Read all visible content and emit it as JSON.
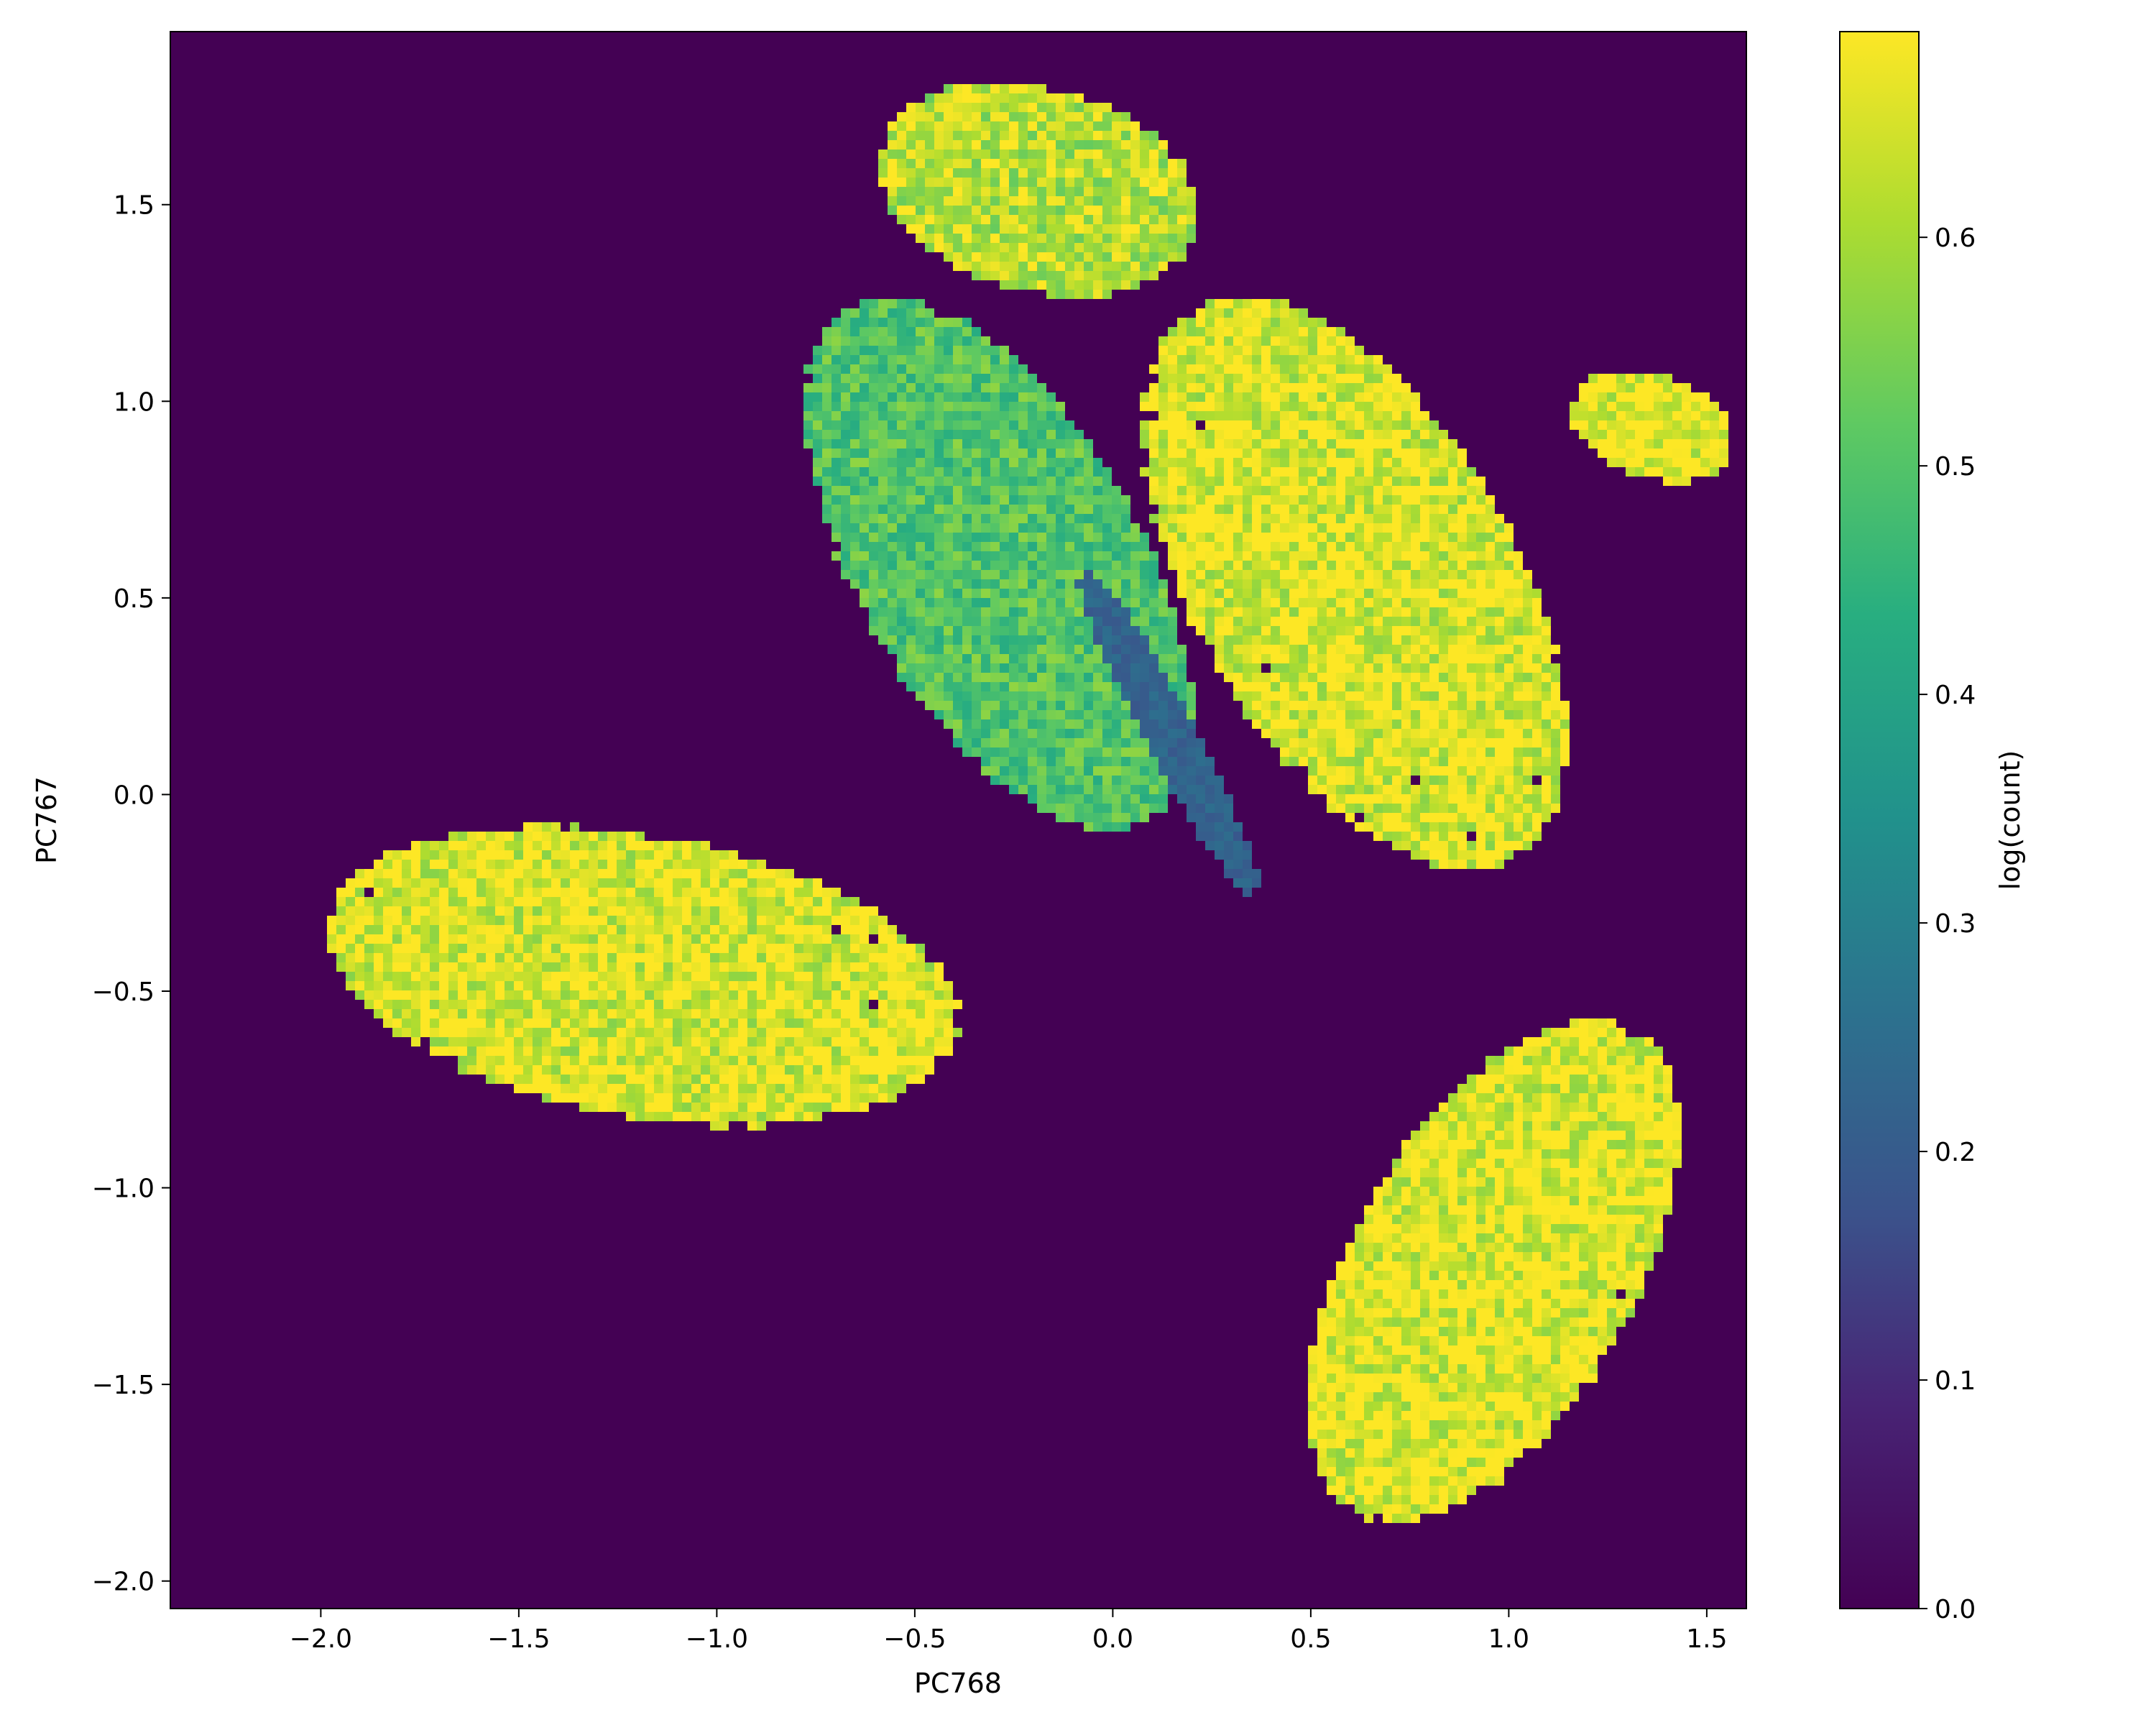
{
  "chart_data": {
    "type": "heatmap",
    "title": "",
    "xlabel": "PC768",
    "ylabel": "PC767",
    "xlim": [
      -2.38,
      1.6
    ],
    "ylim": [
      -2.07,
      1.94
    ],
    "x_ticks": [
      {
        "value": -2.0,
        "label": "−2.0"
      },
      {
        "value": -1.5,
        "label": "−1.5"
      },
      {
        "value": -1.0,
        "label": "−1.0"
      },
      {
        "value": -0.5,
        "label": "−0.5"
      },
      {
        "value": 0.0,
        "label": "0.0"
      },
      {
        "value": 0.5,
        "label": "0.5"
      },
      {
        "value": 1.0,
        "label": "1.0"
      },
      {
        "value": 1.5,
        "label": "1.5"
      }
    ],
    "y_ticks": [
      {
        "value": 1.5,
        "label": "1.5"
      },
      {
        "value": 1.0,
        "label": "1.0"
      },
      {
        "value": 0.5,
        "label": "0.5"
      },
      {
        "value": 0.0,
        "label": "0.0"
      },
      {
        "value": -0.5,
        "label": "−0.5"
      },
      {
        "value": -1.0,
        "label": "−1.0"
      },
      {
        "value": -1.5,
        "label": "−1.5"
      },
      {
        "value": -2.0,
        "label": "−2.0"
      }
    ],
    "colorbar": {
      "label": "log(count)",
      "colormap": "viridis",
      "range": [
        0.0,
        0.69
      ],
      "ticks": [
        {
          "value": 0.0,
          "label": "0.0"
        },
        {
          "value": 0.1,
          "label": "0.1"
        },
        {
          "value": 0.2,
          "label": "0.2"
        },
        {
          "value": 0.3,
          "label": "0.3"
        },
        {
          "value": 0.4,
          "label": "0.4"
        },
        {
          "value": 0.5,
          "label": "0.5"
        },
        {
          "value": 0.6,
          "label": "0.6"
        }
      ]
    },
    "background_value": 0.0,
    "grid": false,
    "regions": [
      {
        "name": "upper-left lobe",
        "center": [
          -0.3,
          0.6
        ],
        "radii": [
          0.35,
          0.75
        ],
        "rotation_deg": 30,
        "value": 0.5
      },
      {
        "name": "upper-right lobe",
        "center": [
          0.6,
          0.55
        ],
        "radii": [
          0.4,
          0.8
        ],
        "rotation_deg": 30,
        "value": 0.66
      },
      {
        "name": "central ridge",
        "center": [
          0.13,
          0.17
        ],
        "radii": [
          0.05,
          0.45
        ],
        "rotation_deg": 28,
        "value": 0.22
      },
      {
        "name": "lower-left spray",
        "center": [
          -1.2,
          -0.45
        ],
        "radii": [
          0.8,
          0.35
        ],
        "rotation_deg": -10,
        "value": 0.66
      },
      {
        "name": "lower-right spray",
        "center": [
          0.95,
          -1.2
        ],
        "radii": [
          0.35,
          0.7
        ],
        "rotation_deg": -30,
        "value": 0.67
      },
      {
        "name": "top filaments",
        "center": [
          -0.2,
          1.55
        ],
        "radii": [
          0.4,
          0.25
        ],
        "rotation_deg": -15,
        "value": 0.62
      },
      {
        "name": "right wing",
        "center": [
          1.35,
          0.95
        ],
        "radii": [
          0.2,
          0.12
        ],
        "rotation_deg": -20,
        "value": 0.68
      }
    ],
    "colors": {
      "viridis_low": "#440154",
      "viridis_mid": "#21918c",
      "viridis_high": "#fde725"
    }
  }
}
